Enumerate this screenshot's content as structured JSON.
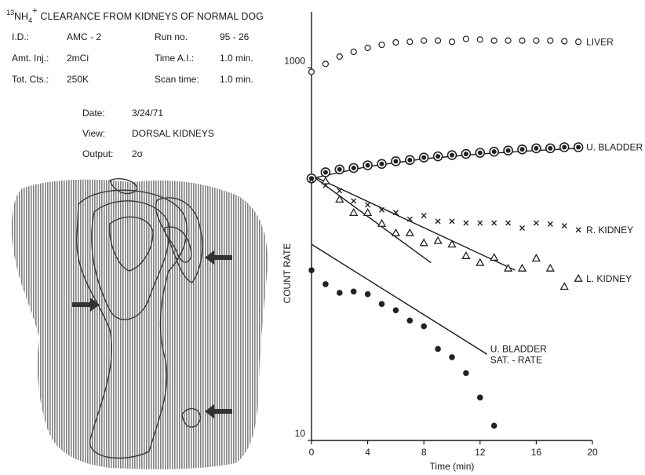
{
  "header": {
    "isotope_mass": "13",
    "compound": "NH",
    "subscript": "4",
    "charge": "+",
    "title": "CLEARANCE FROM KIDNEYS OF NORMAL DOG"
  },
  "info": {
    "rows": [
      [
        "I.D.:",
        "AMC - 2",
        "Run no.",
        "95 - 26"
      ],
      [
        "Amt. Inj.:",
        "2mCi",
        "Time A.I.:",
        "1.0 min."
      ],
      [
        "Tot. Cts.:",
        "250K",
        "Scan time:",
        "1.0 min."
      ]
    ]
  },
  "scan_info": {
    "rows": [
      [
        "Date:",
        "3/24/71"
      ],
      [
        "View:",
        "DORSAL KIDNEYS"
      ],
      [
        "Output:",
        "2σ"
      ]
    ]
  },
  "chart_data": {
    "type": "scatter",
    "x_label": "Time (min)",
    "y_label": "COUNT RATE",
    "log_y": true,
    "xlim": [
      0,
      20
    ],
    "xticks": [
      0,
      4,
      8,
      12,
      16,
      20
    ],
    "ylim": [
      10,
      2000
    ],
    "yticks": [
      10,
      1000
    ],
    "series": [
      {
        "name": "LIVER",
        "marker": "open-circle",
        "color": "#222",
        "x": [
          0,
          1,
          2,
          3,
          4,
          5,
          6,
          7,
          8,
          9,
          10,
          11,
          12,
          13,
          14,
          15,
          16,
          17,
          18,
          19
        ],
        "values": [
          952,
          1050,
          1150,
          1220,
          1280,
          1330,
          1370,
          1380,
          1400,
          1400,
          1380,
          1430,
          1420,
          1400,
          1400,
          1400,
          1400,
          1400,
          1390,
          1380
        ]
      },
      {
        "name": "U. BLADDER",
        "marker": "double-circle",
        "color": "#222",
        "x": [
          0,
          1,
          2,
          3,
          4,
          5,
          6,
          7,
          8,
          9,
          10,
          11,
          12,
          13,
          14,
          15,
          16,
          17,
          18,
          19
        ],
        "values": [
          255,
          275,
          285,
          290,
          300,
          305,
          315,
          320,
          330,
          335,
          340,
          345,
          350,
          355,
          360,
          365,
          370,
          370,
          375,
          375
        ]
      },
      {
        "name": "R. KIDNEY",
        "marker": "x",
        "color": "#222",
        "x": [
          0,
          1,
          2,
          3,
          4,
          5,
          6,
          7,
          8,
          9,
          10,
          11,
          12,
          13,
          14,
          15,
          16,
          17,
          18,
          19
        ],
        "values": [
          251,
          234,
          219,
          193,
          184,
          173,
          167,
          154,
          161,
          150,
          150,
          147,
          147,
          147,
          147,
          138,
          147,
          145,
          142,
          135
        ]
      },
      {
        "name": "L. KIDNEY",
        "marker": "triangle",
        "color": "#222",
        "x": [
          1,
          2,
          3,
          4,
          5,
          6,
          7,
          8,
          9,
          10,
          11,
          12,
          13,
          14,
          15,
          16,
          17,
          18,
          19
        ],
        "values": [
          247,
          197,
          167,
          167,
          146,
          130,
          130,
          115,
          118,
          113,
          98,
          90,
          96,
          84,
          84,
          95,
          84,
          67,
          74
        ]
      },
      {
        "name": "U. BLADDER SAT. - RATE",
        "marker": "dot",
        "color": "#222",
        "x": [
          0,
          1,
          2,
          3,
          4,
          5,
          6,
          7,
          8,
          9,
          10,
          11,
          12,
          13
        ],
        "values": [
          82,
          69,
          62,
          63,
          61,
          54,
          50,
          44,
          41,
          31,
          28,
          23,
          17,
          12
        ]
      }
    ],
    "fits": [
      {
        "x": [
          0,
          4,
          8,
          12,
          16,
          19
        ],
        "values": [
          255,
          295,
          325,
          345,
          360,
          370
        ]
      },
      {
        "x": [
          0,
          8.5
        ],
        "values": [
          265,
          90
        ]
      },
      {
        "x": [
          0,
          14.5
        ],
        "values": [
          265,
          82
        ]
      },
      {
        "x": [
          0,
          12.5
        ],
        "values": [
          113,
          29
        ]
      }
    ]
  }
}
